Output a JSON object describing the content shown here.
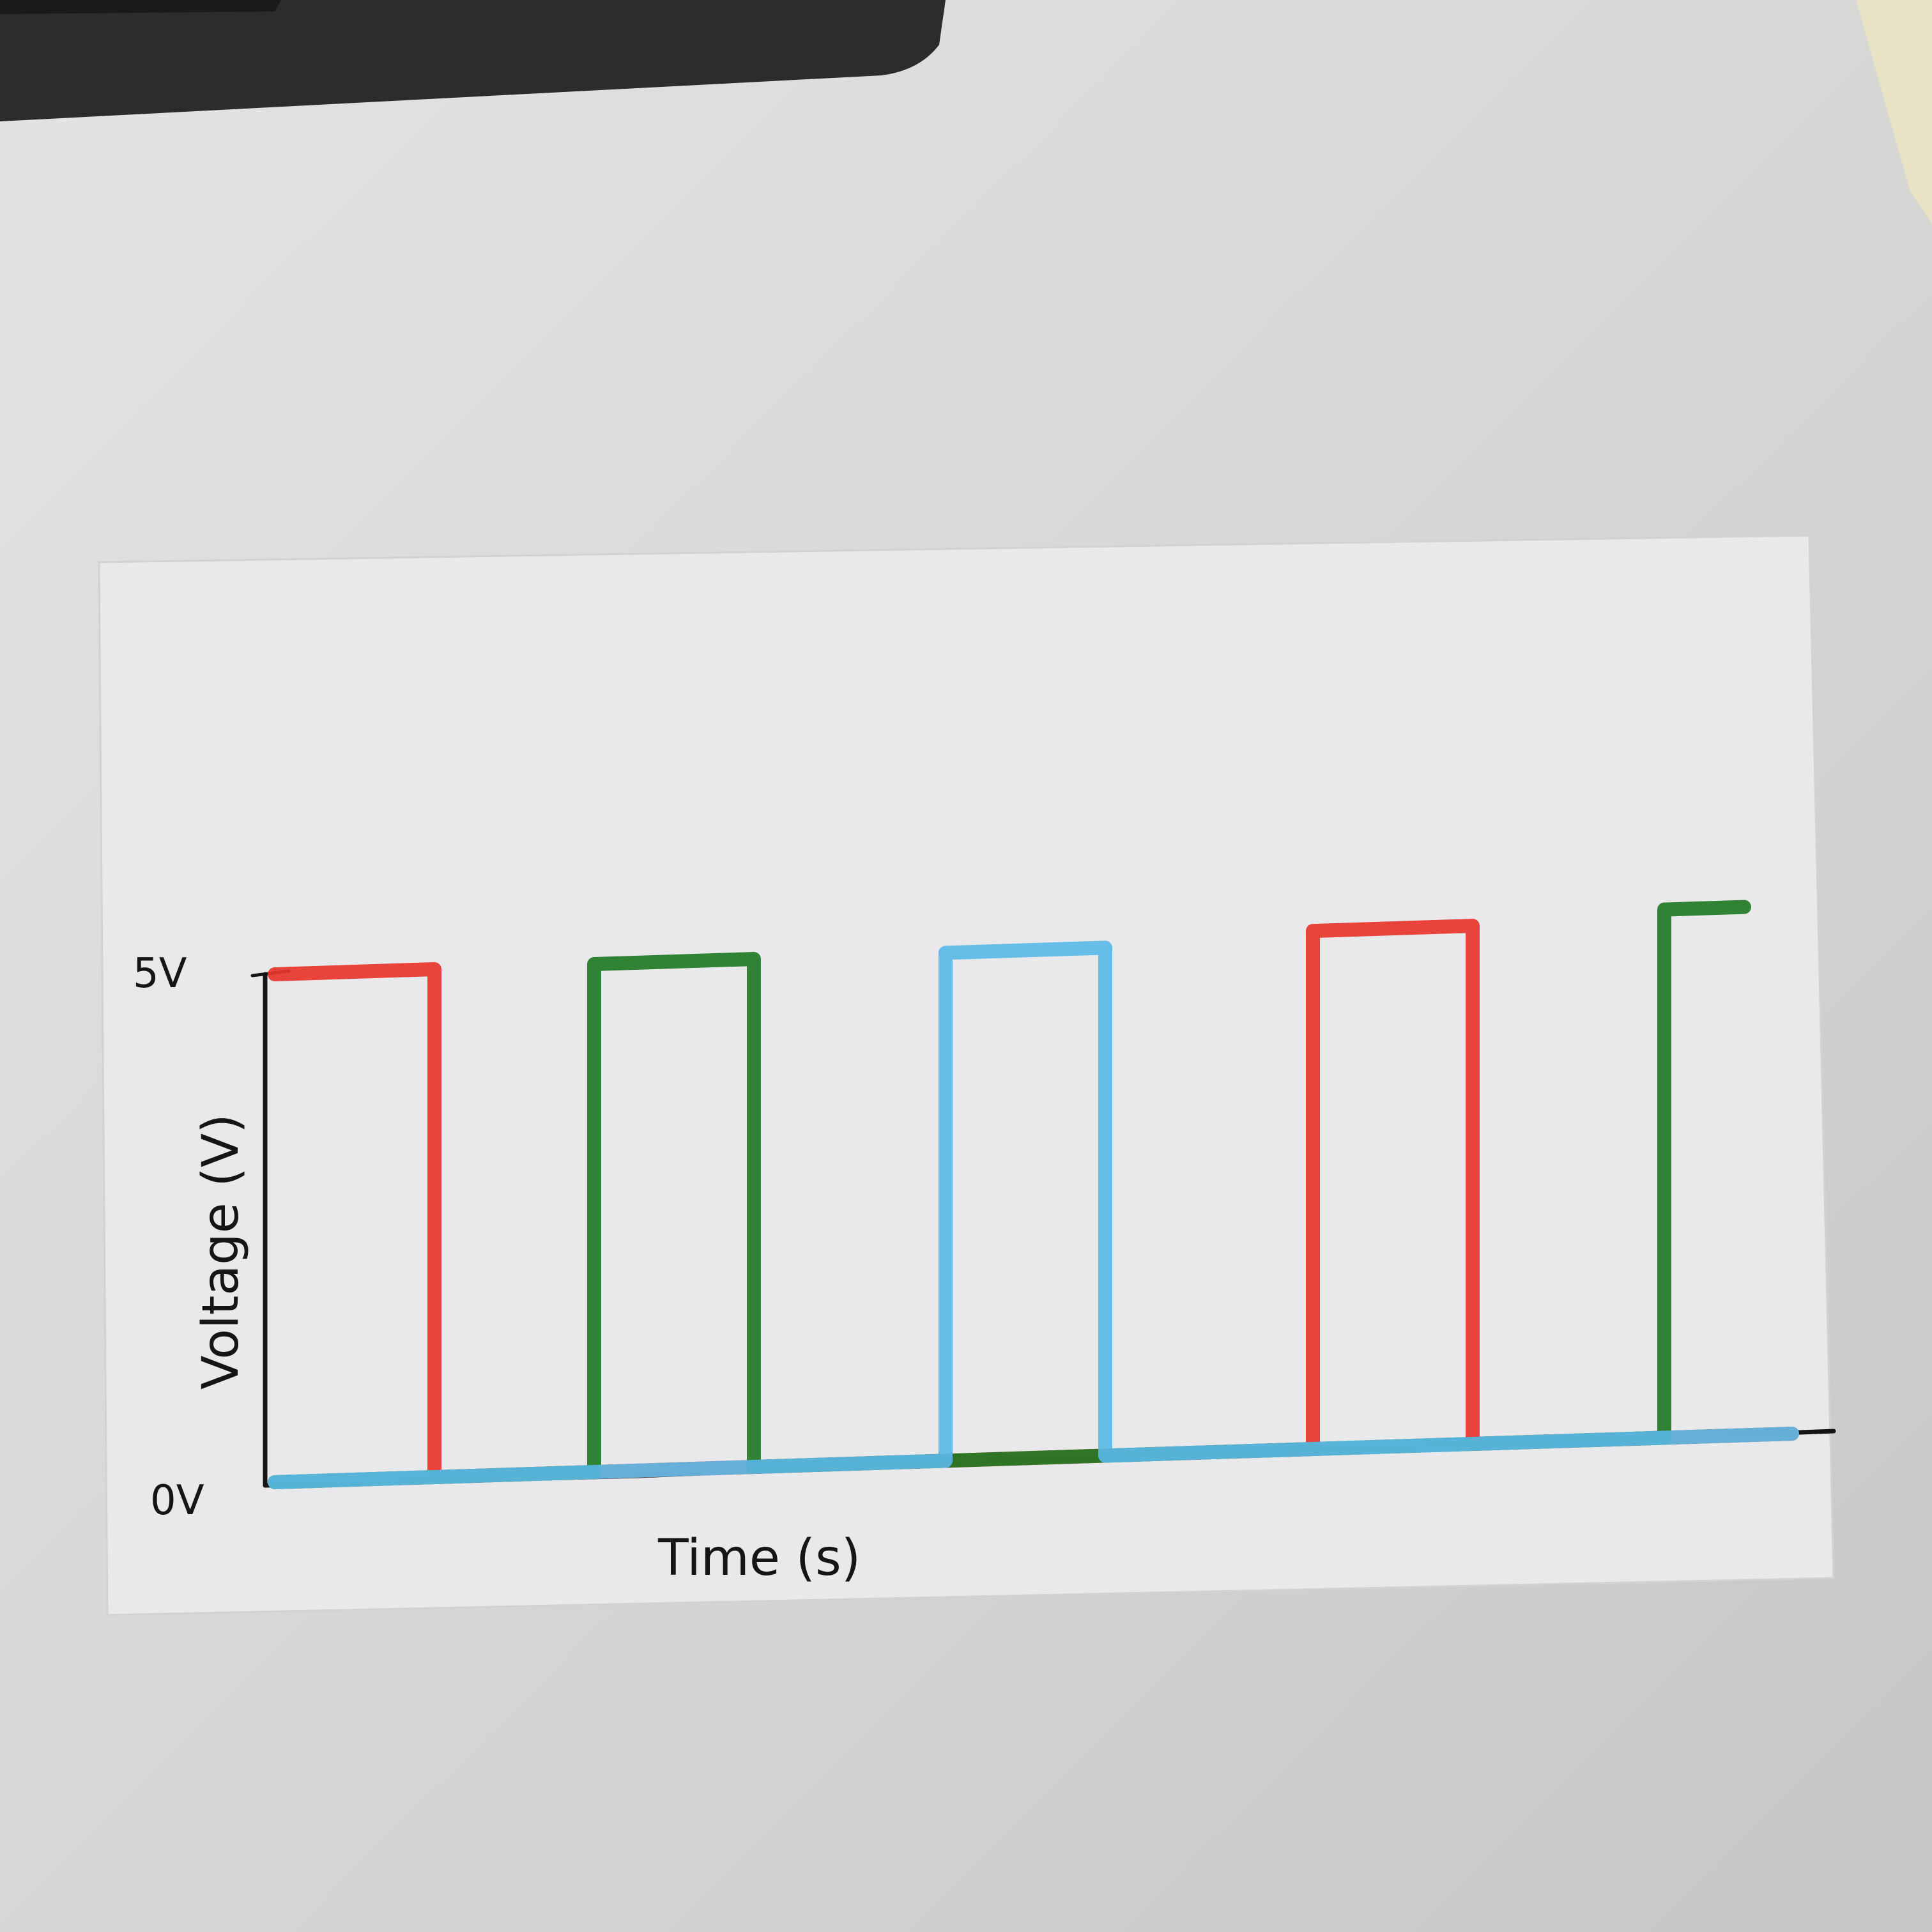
{
  "colors": {
    "desk": "#d6d6d4",
    "paper": "#e9e9ec",
    "ink_black": "#151515",
    "red": "#e8352c",
    "green": "#1f7a24",
    "blue": "#5ab8e6",
    "keyboard": "#2b2c2e"
  },
  "chart_data": {
    "type": "line",
    "title": "",
    "xlabel": "Time (s)",
    "ylabel": "Voltage (V)",
    "y_tick_labels": [
      "0V",
      "5V"
    ],
    "ylim": [
      0,
      5
    ],
    "grid": false,
    "legend": "none",
    "series": [
      {
        "color": "#e8352c",
        "points": [
          [
            0,
            5
          ],
          [
            1,
            5
          ],
          [
            1,
            0
          ],
          [
            6.5,
            0
          ],
          [
            6.5,
            5.1
          ],
          [
            7.5,
            5.1
          ],
          [
            7.5,
            0
          ],
          [
            9.5,
            0
          ]
        ]
      },
      {
        "color": "#1f7a24",
        "points": [
          [
            0,
            0
          ],
          [
            2,
            0
          ],
          [
            2,
            5
          ],
          [
            3,
            5
          ],
          [
            3,
            0
          ],
          [
            8.7,
            0
          ],
          [
            8.7,
            5.2
          ],
          [
            9.2,
            5.2
          ]
        ]
      },
      {
        "color": "#5ab8e6",
        "points": [
          [
            0,
            0
          ],
          [
            4.2,
            0
          ],
          [
            4.2,
            5
          ],
          [
            5.2,
            5
          ],
          [
            5.2,
            0
          ],
          [
            9.5,
            0
          ]
        ]
      }
    ]
  }
}
